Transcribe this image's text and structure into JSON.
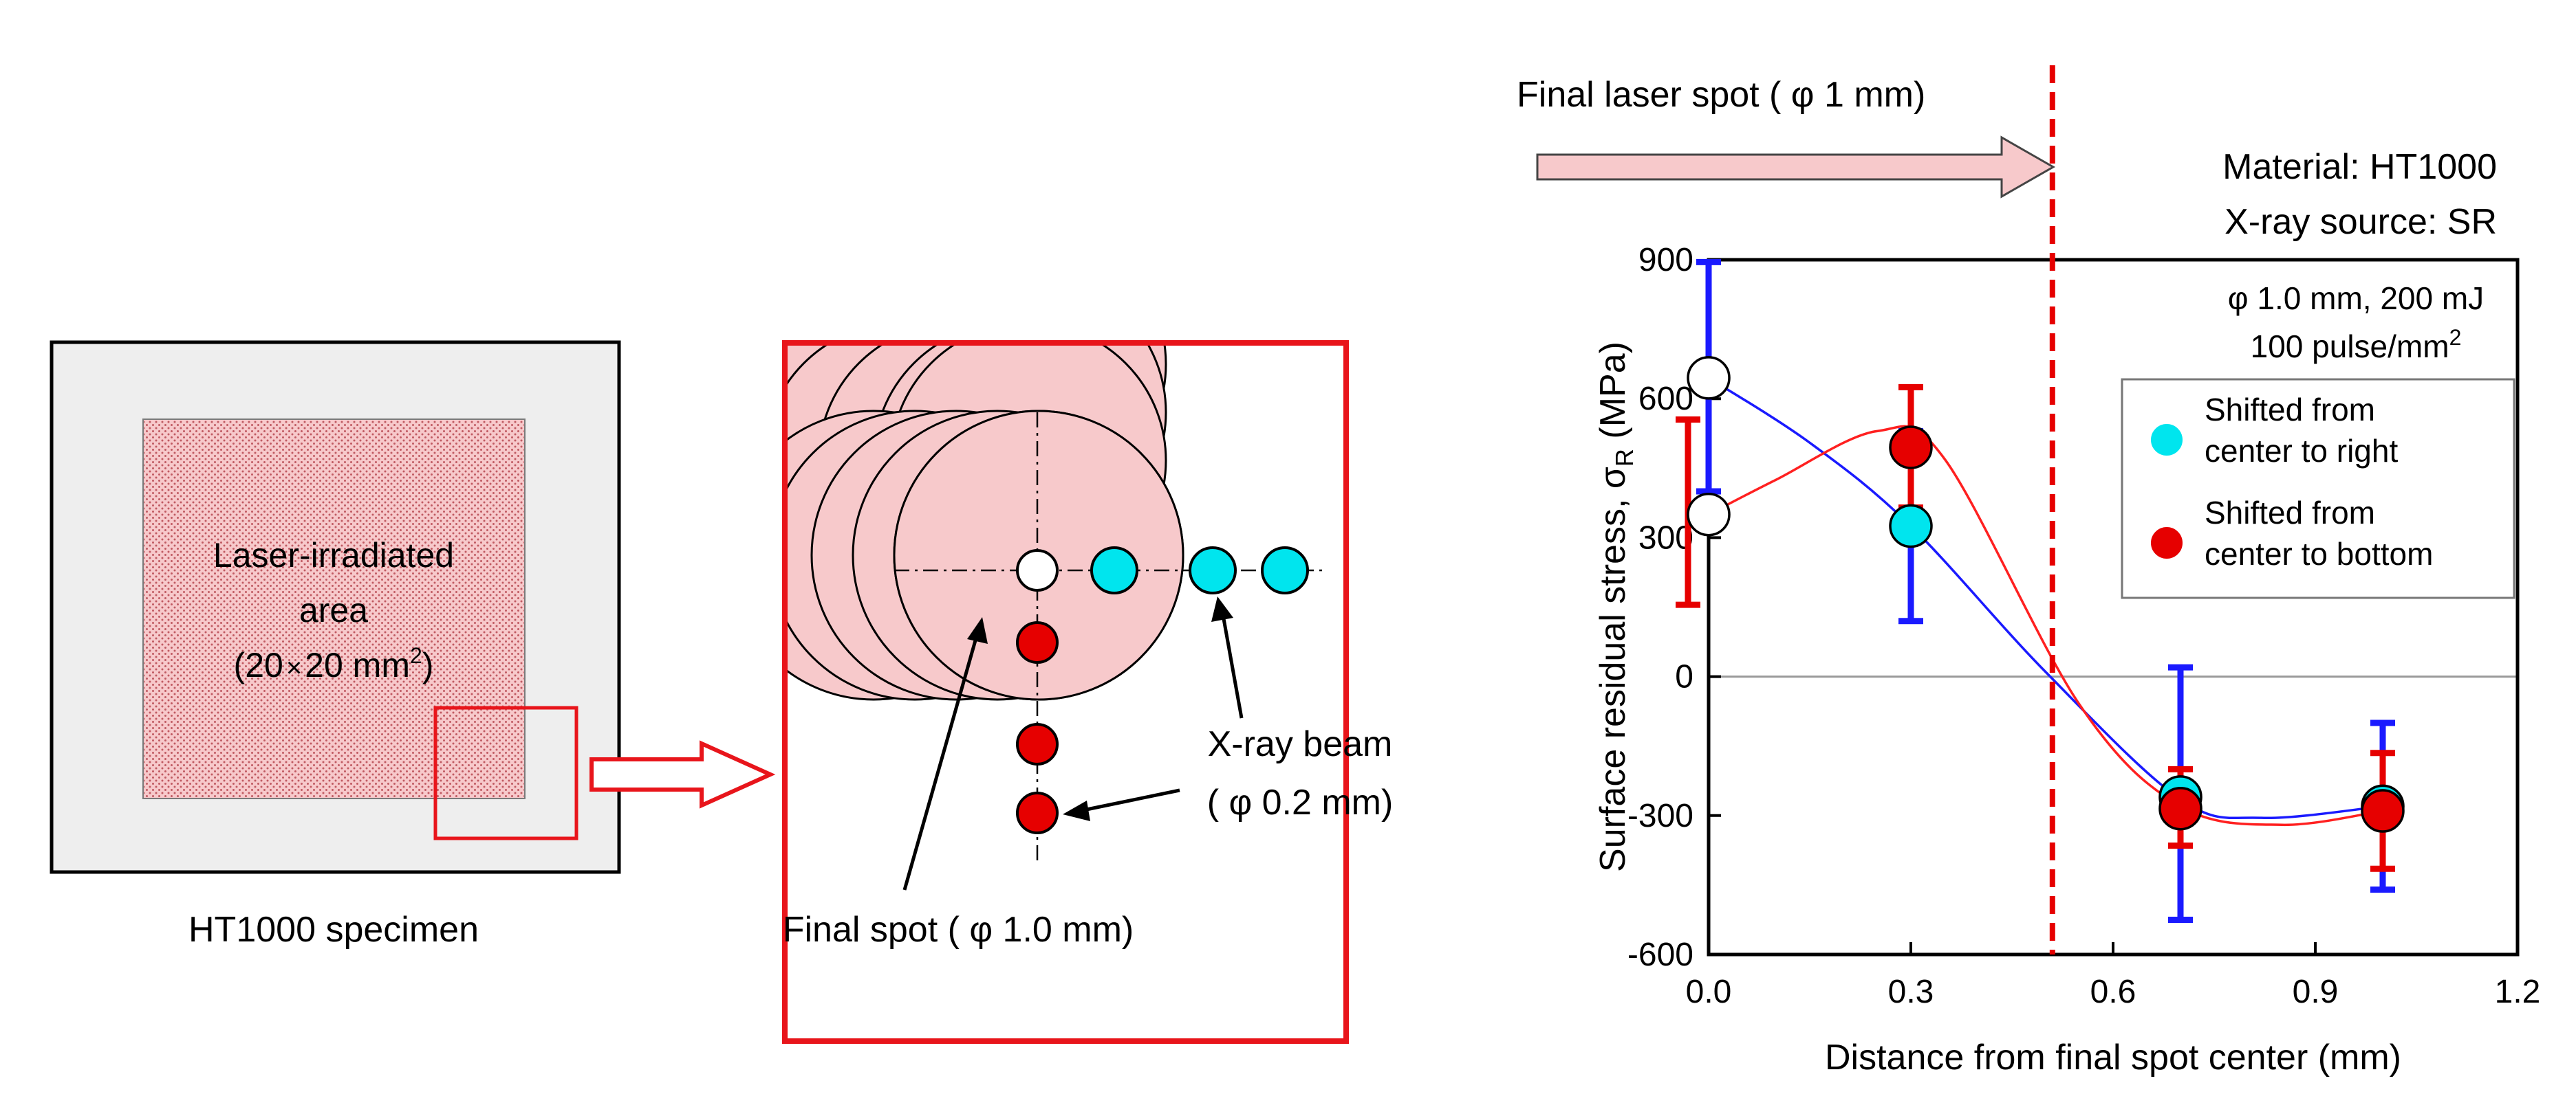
{
  "specimen": {
    "caption": "HT1000 specimen",
    "area_line1": "Laser-irradiated",
    "area_line2": "area",
    "area_line3_pre": "(20",
    "area_line3_times": "×",
    "area_line3_mid": "20 mm",
    "area_line3_sup": "2",
    "area_line3_post": ")"
  },
  "detail": {
    "xray_label_line1": "X-ray beam",
    "xray_label_line2": "( φ 0.2 mm)",
    "final_spot_label": "Final spot ( φ 1.0 mm)"
  },
  "annotations": {
    "final_laser_spot": "Final laser spot ( φ 1 mm)",
    "material": "Material:  HT1000",
    "xray_source": "X-ray source:  SR",
    "condition_line1": "φ 1.0 mm, 200 mJ",
    "condition_line2": "100 pulse/mm",
    "condition_line2_sup": "2"
  },
  "colors": {
    "cyan": "#00E5EE",
    "red": "#E60000",
    "blue_line": "#1A1AFF",
    "red_line": "#FF2020",
    "pink_fill": "#F7C9CB",
    "specimen_gray": "#EEEEEE",
    "frame_red": "#E8151B"
  },
  "chart_data": {
    "type": "scatter",
    "title": "",
    "xlabel": "Distance from final spot center (mm)",
    "ylabel_main": "Surface residual stress, σ",
    "ylabel_sub": "R",
    "ylabel_unit": " (MPa)",
    "xlim": [
      0.0,
      1.2
    ],
    "ylim": [
      -600,
      900
    ],
    "xticks": [
      0.0,
      0.3,
      0.6,
      0.9,
      1.2
    ],
    "xtick_labels": [
      "0.0",
      "0.3",
      "0.6",
      "0.9",
      "1.2"
    ],
    "yticks": [
      -600,
      -300,
      0,
      300,
      600,
      900
    ],
    "ytick_labels": [
      "-600",
      "-300",
      "0",
      "300",
      "600",
      "900"
    ],
    "vertical_marker_x": 0.51,
    "series": [
      {
        "name_line1": "Shifted from",
        "name_line2": "center to right",
        "color": "cyan",
        "points": [
          {
            "x": 0.0,
            "y": 645,
            "err_lo": 400,
            "err_hi": 895,
            "hollow": true
          },
          {
            "x": 0.3,
            "y": 325,
            "err_lo": 120,
            "err_hi": 530
          },
          {
            "x": 0.7,
            "y": -260,
            "err_lo": -525,
            "err_hi": 20
          },
          {
            "x": 1.0,
            "y": -280,
            "err_lo": -460,
            "err_hi": -100
          }
        ]
      },
      {
        "name_line1": "Shifted from",
        "name_line2": "center to bottom",
        "color": "red",
        "points": [
          {
            "x": 0.0,
            "y": 350,
            "err_lo": 155,
            "err_hi": 555,
            "hollow": true
          },
          {
            "x": 0.3,
            "y": 495,
            "err_lo": 365,
            "err_hi": 625
          },
          {
            "x": 0.7,
            "y": -285,
            "err_lo": -365,
            "err_hi": -200
          },
          {
            "x": 1.0,
            "y": -290,
            "err_lo": -415,
            "err_hi": -165
          }
        ]
      }
    ],
    "fit_curves": [
      {
        "color": "blue_line",
        "points": [
          [
            0.0,
            645
          ],
          [
            0.15,
            505
          ],
          [
            0.3,
            325
          ],
          [
            0.5,
            10
          ],
          [
            0.7,
            -265
          ],
          [
            0.82,
            -305
          ],
          [
            1.0,
            -280
          ]
        ]
      },
      {
        "color": "red_line",
        "points": [
          [
            0.0,
            350
          ],
          [
            0.1,
            425
          ],
          [
            0.25,
            530
          ],
          [
            0.35,
            470
          ],
          [
            0.55,
            -60
          ],
          [
            0.7,
            -280
          ],
          [
            0.85,
            -320
          ],
          [
            1.0,
            -290
          ]
        ]
      }
    ],
    "legend_position": "right"
  }
}
